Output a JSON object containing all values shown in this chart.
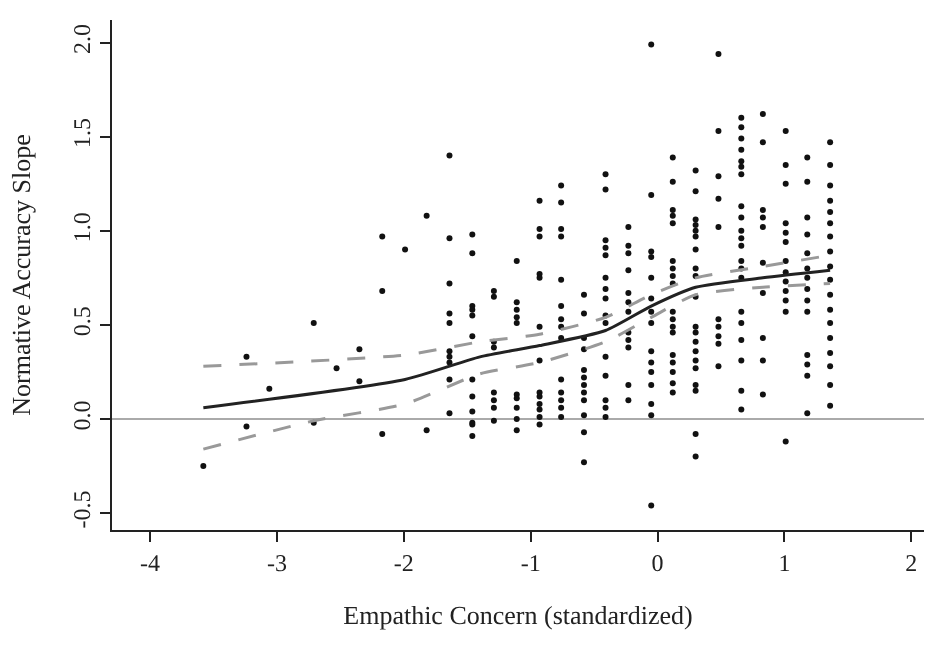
{
  "chart_data": {
    "type": "scatter",
    "xlabel": "Empathic Concern (standardized)",
    "ylabel": "Normative Accuracy Slope",
    "xlim": [
      -4.3,
      2.1
    ],
    "xticks": [
      -4,
      -3,
      -2,
      -1,
      0,
      1,
      2
    ],
    "ylim": [
      -0.59,
      2.12
    ],
    "yticks": [
      {
        "value": -0.5,
        "label": "-0.5"
      },
      {
        "value": 0,
        "label": "0.0"
      },
      {
        "value": 0.5,
        "label": "0.5"
      },
      {
        "value": 1,
        "label": "1.0"
      },
      {
        "value": 1.5,
        "label": "1.5"
      },
      {
        "value": 2,
        "label": "2.0"
      }
    ],
    "grid": false,
    "ref_lines": [
      {
        "axis": "y",
        "value": 0,
        "label": null,
        "color": "#aaaaaa",
        "line_style": "solid"
      }
    ],
    "series": [
      {
        "marker": "circle",
        "color": "#111111",
        "x": [
          -3.58,
          -3.24,
          -3.24,
          -3.06,
          -2.71,
          -2.71,
          -2.53,
          -2.35,
          -2.35,
          -2.17,
          -2.17,
          -2.17,
          -1.99,
          -1.82,
          -1.82,
          -1.64,
          -1.64,
          -1.64,
          -1.64,
          -1.64,
          -1.64,
          -1.64,
          -1.64,
          -1.64,
          -1.64,
          -1.46,
          -1.46,
          -1.46,
          -1.46,
          -1.46,
          -1.46,
          -1.46,
          -1.46,
          -1.46,
          -1.46,
          -1.46,
          -1.46,
          -1.29,
          -1.29,
          -1.29,
          -1.29,
          -1.29,
          -1.29,
          -1.29,
          -1.29,
          -1.11,
          -1.11,
          -1.11,
          -1.11,
          -1.11,
          -1.11,
          -1.11,
          -1.11,
          -1.11,
          -1.11,
          -0.93,
          -0.93,
          -0.93,
          -0.93,
          -0.93,
          -0.93,
          -0.93,
          -0.93,
          -0.93,
          -0.93,
          -0.93,
          -0.93,
          -0.93,
          -0.76,
          -0.76,
          -0.76,
          -0.76,
          -0.76,
          -0.76,
          -0.76,
          -0.76,
          -0.76,
          -0.76,
          -0.76,
          -0.76,
          -0.76,
          -0.76,
          -0.58,
          -0.58,
          -0.58,
          -0.58,
          -0.58,
          -0.58,
          -0.58,
          -0.58,
          -0.58,
          -0.58,
          -0.58,
          -0.58,
          -0.41,
          -0.41,
          -0.41,
          -0.41,
          -0.41,
          -0.41,
          -0.41,
          -0.41,
          -0.41,
          -0.41,
          -0.41,
          -0.41,
          -0.41,
          -0.41,
          -0.41,
          -0.23,
          -0.23,
          -0.23,
          -0.23,
          -0.23,
          -0.23,
          -0.23,
          -0.23,
          -0.23,
          -0.23,
          -0.23,
          -0.23,
          -0.05,
          -0.05,
          -0.05,
          -0.05,
          -0.05,
          -0.05,
          -0.05,
          -0.05,
          -0.05,
          -0.05,
          -0.05,
          -0.05,
          -0.05,
          -0.05,
          -0.05,
          0.12,
          0.12,
          0.12,
          0.12,
          0.12,
          0.12,
          0.12,
          0.12,
          0.12,
          0.12,
          0.12,
          0.12,
          0.12,
          0.12,
          0.12,
          0.12,
          0.12,
          0.12,
          0.3,
          0.3,
          0.3,
          0.3,
          0.3,
          0.3,
          0.3,
          0.3,
          0.3,
          0.3,
          0.3,
          0.3,
          0.3,
          0.3,
          0.3,
          0.3,
          0.3,
          0.3,
          0.3,
          0.3,
          0.48,
          0.48,
          0.48,
          0.48,
          0.48,
          0.48,
          0.48,
          0.48,
          0.48,
          0.48,
          0.66,
          0.66,
          0.66,
          0.66,
          0.66,
          0.66,
          0.66,
          0.66,
          0.66,
          0.66,
          0.66,
          0.66,
          0.66,
          0.66,
          0.66,
          0.66,
          0.66,
          0.66,
          0.66,
          0.66,
          0.66,
          0.83,
          0.83,
          0.83,
          0.83,
          0.83,
          0.83,
          0.83,
          0.83,
          0.83,
          0.83,
          1.01,
          1.01,
          1.01,
          1.01,
          1.01,
          1.01,
          1.01,
          1.01,
          1.01,
          1.01,
          1.01,
          1.01,
          1.01,
          1.18,
          1.18,
          1.18,
          1.18,
          1.18,
          1.18,
          1.18,
          1.18,
          1.18,
          1.18,
          1.18,
          1.18,
          1.18,
          1.18,
          1.36,
          1.36,
          1.36,
          1.36,
          1.36,
          1.36,
          1.36,
          1.36,
          1.36,
          1.36,
          1.36,
          1.36,
          1.36,
          1.36,
          1.36,
          1.36,
          1.36,
          1.36
        ],
        "values": [
          -0.25,
          0.33,
          -0.04,
          0.16,
          0.51,
          -0.02,
          0.27,
          0.37,
          0.2,
          0.97,
          0.68,
          -0.08,
          0.9,
          1.08,
          -0.06,
          1.4,
          0.96,
          0.72,
          0.56,
          0.51,
          0.36,
          0.33,
          0.3,
          0.21,
          0.03,
          0.98,
          0.88,
          0.6,
          0.58,
          0.55,
          0.44,
          0.21,
          0.12,
          0.04,
          -0.02,
          -0.03,
          -0.09,
          0.68,
          0.65,
          0.41,
          0.38,
          0.14,
          0.1,
          0.06,
          -0.01,
          0.84,
          0.62,
          0.58,
          0.54,
          0.51,
          0.13,
          0.11,
          0.06,
          0.0,
          -0.06,
          1.16,
          1.01,
          0.97,
          0.77,
          0.75,
          0.49,
          0.31,
          0.14,
          0.12,
          0.08,
          0.05,
          0.01,
          -0.03,
          1.24,
          1.15,
          1.01,
          0.97,
          0.74,
          0.6,
          0.53,
          0.49,
          0.43,
          0.21,
          0.14,
          0.1,
          0.06,
          0.01,
          0.66,
          0.56,
          0.43,
          0.37,
          0.26,
          0.22,
          0.18,
          0.14,
          0.1,
          0.02,
          -0.07,
          -0.23,
          1.3,
          1.22,
          0.95,
          0.91,
          0.87,
          0.75,
          0.69,
          0.64,
          0.55,
          0.51,
          0.33,
          0.23,
          0.1,
          0.06,
          0.01,
          1.02,
          0.92,
          0.88,
          0.79,
          0.67,
          0.62,
          0.57,
          0.46,
          0.42,
          0.38,
          0.18,
          0.1,
          1.99,
          1.19,
          0.89,
          0.86,
          0.75,
          0.64,
          0.57,
          0.51,
          0.36,
          0.3,
          0.25,
          0.18,
          0.08,
          0.02,
          -0.46,
          1.39,
          1.26,
          1.11,
          1.08,
          1.04,
          0.84,
          0.8,
          0.76,
          0.72,
          0.57,
          0.53,
          0.49,
          0.46,
          0.34,
          0.3,
          0.25,
          0.19,
          0.14,
          1.32,
          1.21,
          1.06,
          1.03,
          1.0,
          0.97,
          0.9,
          0.8,
          0.76,
          0.65,
          0.49,
          0.46,
          0.41,
          0.36,
          0.31,
          0.27,
          0.18,
          0.15,
          -0.08,
          -0.2,
          1.94,
          1.53,
          1.29,
          1.17,
          1.02,
          0.53,
          0.49,
          0.44,
          0.4,
          0.28,
          1.6,
          1.55,
          1.49,
          1.43,
          1.37,
          1.34,
          1.3,
          1.13,
          1.07,
          1.0,
          0.96,
          0.92,
          0.84,
          0.8,
          0.75,
          0.57,
          0.51,
          0.42,
          0.31,
          0.15,
          0.05,
          1.62,
          1.47,
          1.11,
          1.07,
          1.02,
          0.83,
          0.67,
          0.43,
          0.31,
          0.13,
          1.53,
          1.35,
          1.25,
          1.04,
          0.99,
          0.94,
          0.84,
          0.78,
          0.73,
          0.68,
          0.63,
          0.57,
          -0.12,
          1.39,
          1.26,
          1.07,
          0.98,
          0.88,
          0.8,
          0.75,
          0.69,
          0.63,
          0.57,
          0.34,
          0.29,
          0.23,
          0.03,
          1.47,
          1.35,
          1.24,
          1.16,
          1.1,
          1.04,
          0.97,
          0.89,
          0.81,
          0.74,
          0.66,
          0.58,
          0.51,
          0.43,
          0.35,
          0.28,
          0.18,
          0.07
        ]
      },
      {
        "type": "line",
        "color": "#222222",
        "line_style": "solid",
        "marker": "none",
        "x": [
          -3.58,
          -1.99,
          -1.4,
          -0.93,
          -0.41,
          -0.05,
          0.3,
          0.83,
          1.36
        ],
        "values": [
          0.06,
          0.21,
          0.33,
          0.39,
          0.47,
          0.6,
          0.7,
          0.75,
          0.79
        ]
      },
      {
        "type": "line",
        "color": "#999999",
        "line_style": "dashed",
        "marker": "none",
        "x": [
          -3.58,
          -1.99,
          -1.4,
          -0.93,
          -0.41,
          -0.05,
          0.3,
          0.83,
          1.36
        ],
        "values": [
          0.28,
          0.34,
          0.41,
          0.45,
          0.54,
          0.66,
          0.75,
          0.81,
          0.87
        ]
      },
      {
        "type": "line",
        "color": "#999999",
        "line_style": "dashed",
        "marker": "none",
        "x": [
          -3.58,
          -2.71,
          -1.99,
          -1.4,
          -0.93,
          -0.41,
          -0.05,
          0.3,
          0.83,
          1.36
        ],
        "values": [
          -0.16,
          -0.01,
          0.08,
          0.24,
          0.3,
          0.41,
          0.54,
          0.66,
          0.7,
          0.72
        ]
      }
    ]
  }
}
